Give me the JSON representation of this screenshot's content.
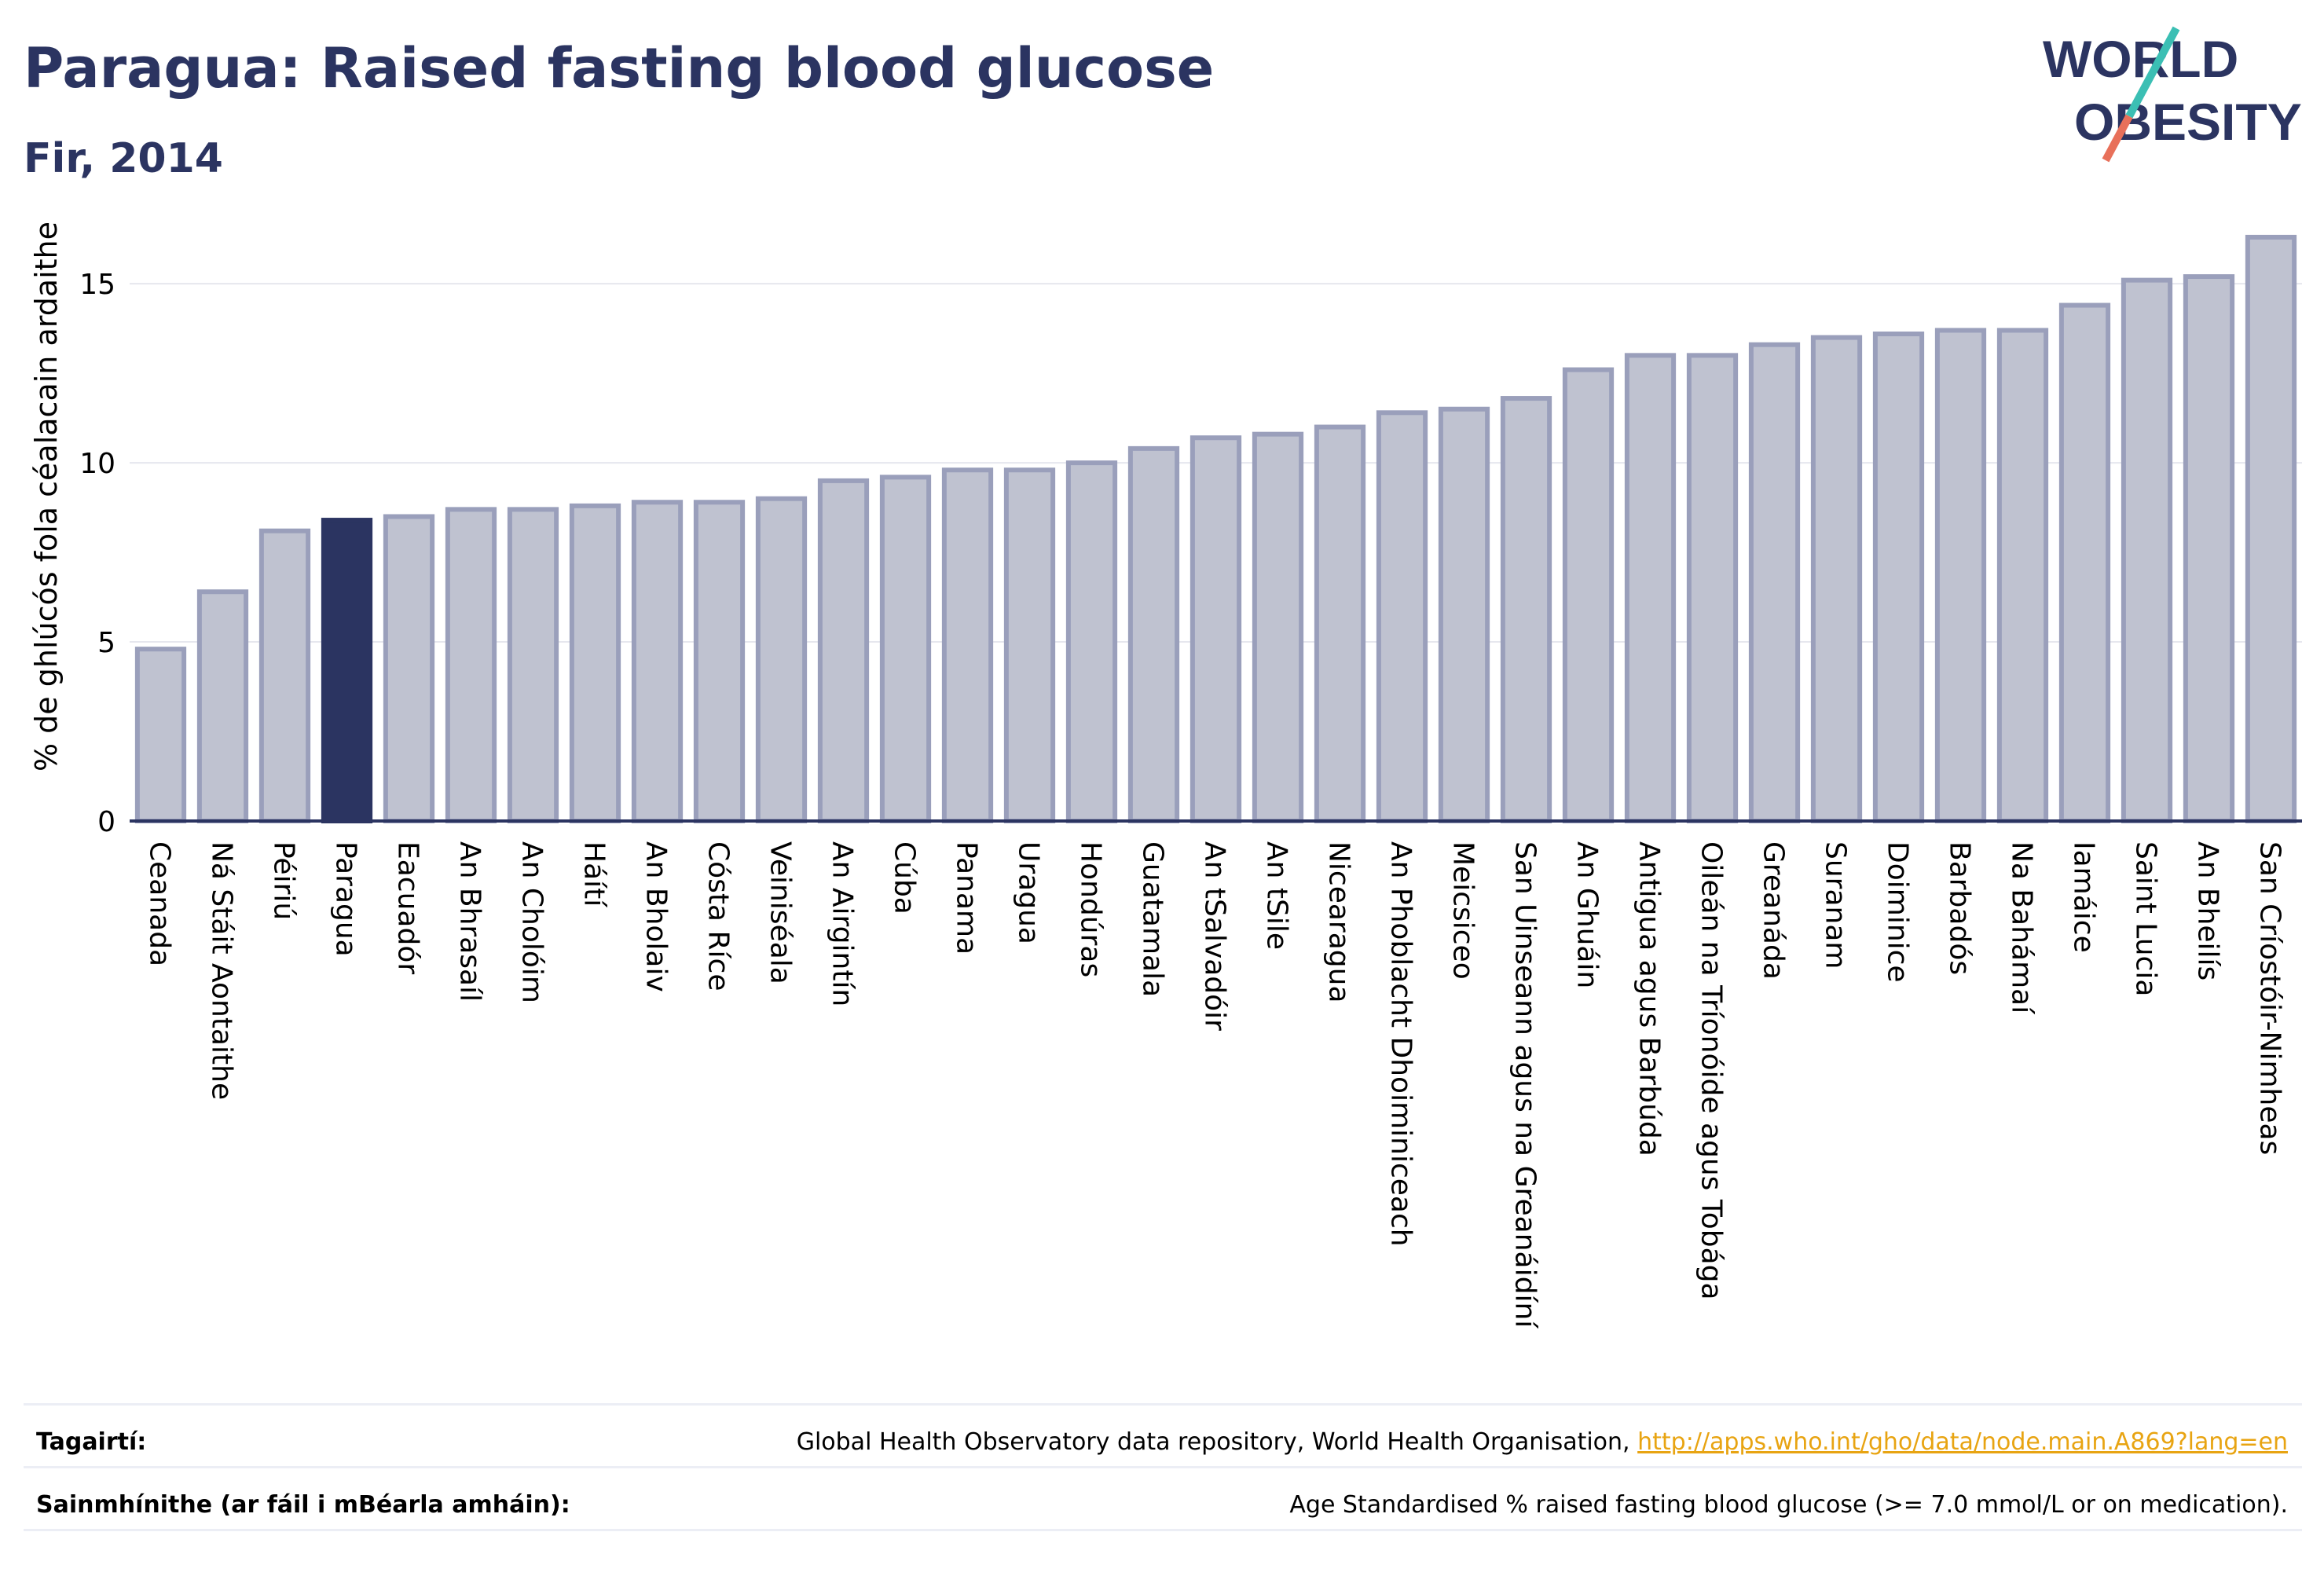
{
  "header": {
    "title": "Paragua: Raised fasting blood glucose",
    "subtitle": "Fir, 2014"
  },
  "logo": {
    "line1": "WORLD",
    "line2": "OBESITY"
  },
  "chart_data": {
    "type": "bar",
    "ylabel": "% de ghlúcós fola céalacain ardaithe",
    "xlabel": "",
    "ylim": [
      0,
      17
    ],
    "yticks": [
      0,
      5,
      10,
      15
    ],
    "grid": true,
    "highlight": "Paragua",
    "colors": {
      "bar": "#bfc2d0",
      "bar_edge": "#9a9fbb",
      "highlight": "#2b3461",
      "grid": "#e6e7ee",
      "axis": "#2b3461"
    },
    "categories": [
      "Ceanada",
      "Ná Stáit Aontaithe",
      "Péiriú",
      "Paragua",
      "Eacuadór",
      "An Bhrasaíl",
      "An Cholóim",
      "Háítí",
      "An Bholaiv",
      "Cósta Ríce",
      "Veiniséala",
      "An Airgintín",
      "Cúba",
      "Panama",
      "Uragua",
      "Hondúras",
      "Guatamala",
      "An tSalvadóir",
      "An tSile",
      "Nicearagua",
      "An Phoblacht Dhoiminiceach",
      "Meicsiceo",
      "San Uinseann agus na Greanáidíní",
      "An Ghuáin",
      "Antigua agus Barbúda",
      "Oileán na Tríonóide agus Tobága",
      "Greanáda",
      "Suranam",
      "Doiminice",
      "Barbadós",
      "Na Bahámaí",
      "Iamáice",
      "Saint Lucia",
      "An Bheilís",
      "San Críostóir-Nimheas"
    ],
    "values": [
      4.8,
      6.4,
      8.1,
      8.4,
      8.5,
      8.7,
      8.7,
      8.8,
      8.9,
      8.9,
      9.0,
      9.5,
      9.6,
      9.8,
      9.8,
      10.0,
      10.4,
      10.7,
      10.8,
      11.0,
      11.4,
      11.5,
      11.8,
      12.6,
      13.0,
      13.0,
      13.3,
      13.5,
      13.6,
      13.7,
      13.7,
      14.4,
      15.1,
      15.2,
      16.3
    ]
  },
  "footer": {
    "references_label": "Tagairtí:",
    "references_text": "Global Health Observatory data repository, World Health Organisation,",
    "references_link": "http://apps.who.int/gho/data/node.main.A869?lang=en",
    "definitions_label": "Sainmhínithe (ar fáil i mBéarla amháin):",
    "definitions_text": "Age Standardised % raised fasting blood glucose (>= 7.0 mmol/L or on medication)."
  }
}
